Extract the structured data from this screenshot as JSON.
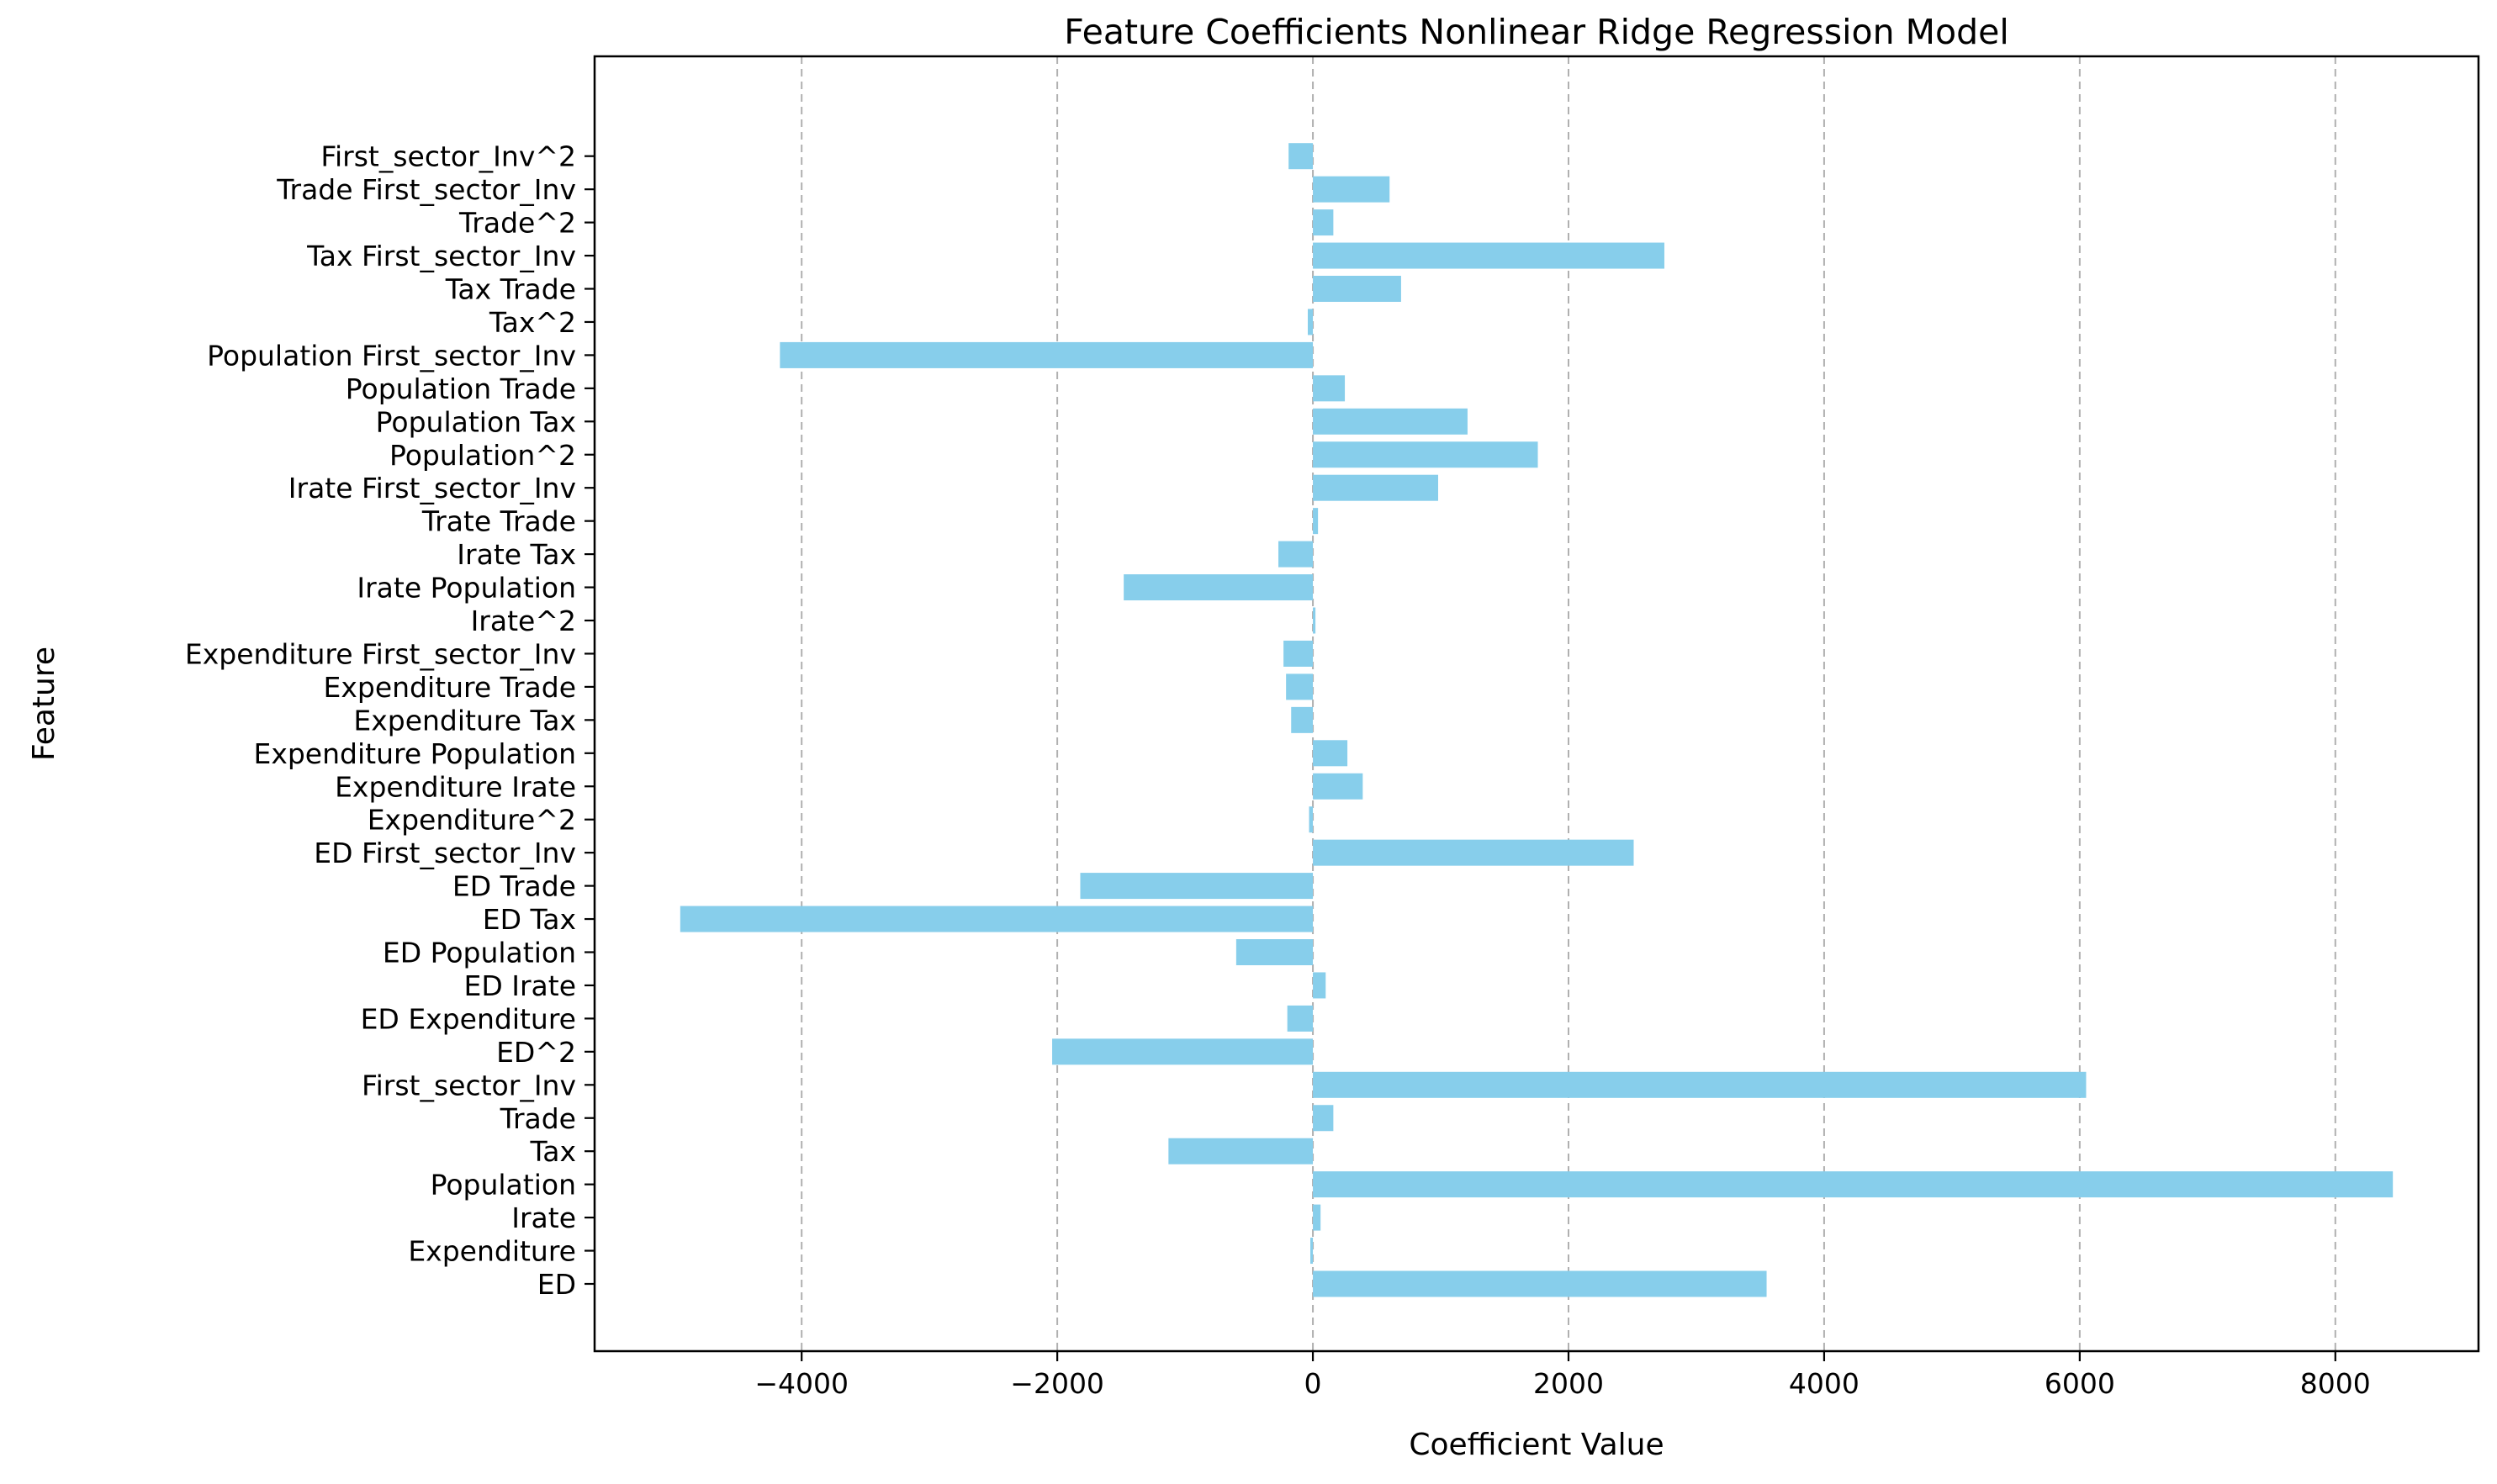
{
  "chart_data": {
    "type": "bar",
    "orientation": "horizontal",
    "title": "Feature Coefficients Nonlinear Ridge Regression Model",
    "xlabel": "Coefficient Value",
    "ylabel": "Feature",
    "xlim": [
      -5620,
      9120
    ],
    "xticks": [
      -4000,
      -2000,
      0,
      2000,
      4000,
      6000,
      8000
    ],
    "xtick_labels": [
      "−4000",
      "−2000",
      "0",
      "2000",
      "4000",
      "6000",
      "8000"
    ],
    "grid": "x-dashed",
    "color": "#87ceeb",
    "categories": [
      "ED",
      "Expenditure",
      "Irate",
      "Population",
      "Tax",
      "Trade",
      "First_sector_Inv",
      "ED^2",
      "ED Expenditure",
      "ED Irate",
      "ED Population",
      "ED Tax",
      "ED Trade",
      "ED First_sector_Inv",
      "Expenditure^2",
      "Expenditure Irate",
      "Expenditure Population",
      "Expenditure Tax",
      "Expenditure Trade",
      "Expenditure First_sector_Inv",
      "Irate^2",
      "Irate Population",
      "Irate Tax",
      "Trate Trade",
      "Irate First_sector_Inv",
      "Population^2",
      "Population Tax",
      "Population Trade",
      "Population First_sector_Inv",
      "Tax^2",
      "Tax Trade",
      "Tax First_sector_Inv",
      "Trade^2",
      "Trade First_sector_Inv",
      "First_sector_Inv^2"
    ],
    "values": [
      3550,
      -20,
      60,
      8450,
      -1130,
      160,
      6050,
      -2040,
      -200,
      100,
      -600,
      -4950,
      -1820,
      2510,
      -30,
      390,
      270,
      -170,
      -210,
      -230,
      20,
      -1480,
      -270,
      40,
      980,
      1760,
      1210,
      250,
      -4170,
      -40,
      690,
      2750,
      160,
      600,
      -190
    ]
  }
}
